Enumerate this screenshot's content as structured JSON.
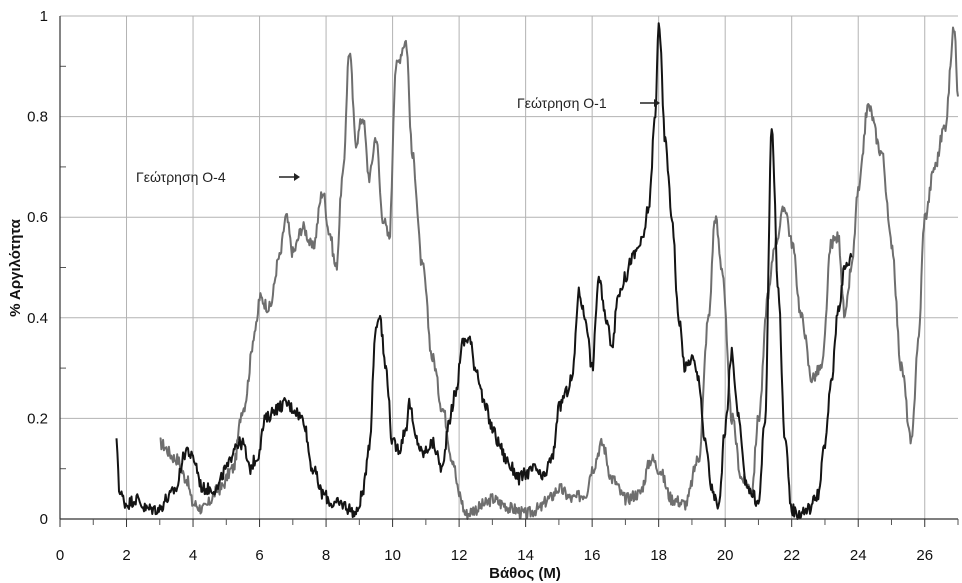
{
  "chart_data": {
    "type": "line",
    "xlabel": "Βάθος (M)",
    "ylabel": "% Αργιλότητα",
    "xlim": [
      0,
      27
    ],
    "ylim": [
      0,
      1
    ],
    "xticks": [
      0,
      2,
      4,
      6,
      8,
      10,
      12,
      14,
      16,
      18,
      20,
      22,
      24,
      26
    ],
    "yticks": [
      0,
      0.2,
      0.4,
      0.6,
      0.8,
      1
    ],
    "ytick_labels": [
      "0",
      "0.2",
      "0.4",
      "0.6",
      "0.8",
      "1"
    ],
    "grid": true,
    "annotations": [
      {
        "text": "Γεώτρηση O-4",
        "series": 0,
        "arrow": "right"
      },
      {
        "text": "Γεώτρηση O-1",
        "series": 1,
        "arrow": "right"
      }
    ],
    "series": [
      {
        "name": "Γεώτρηση O-4",
        "color": "#6e6e6e",
        "x": [
          3.0,
          3.5,
          3.8,
          4.0,
          4.3,
          4.8,
          5.2,
          5.5,
          5.9,
          6.0,
          6.3,
          6.6,
          6.8,
          7.0,
          7.3,
          7.6,
          7.9,
          8.1,
          8.3,
          8.5,
          8.7,
          8.9,
          9.1,
          9.3,
          9.5,
          9.7,
          9.9,
          10.1,
          10.4,
          10.6,
          10.9,
          11.2,
          11.5,
          11.8,
          12.0,
          12.2,
          12.5,
          12.8,
          13.0,
          13.3,
          13.6,
          14.0,
          14.4,
          14.7,
          15.0,
          15.4,
          15.8,
          16.0,
          16.3,
          16.6,
          17.0,
          17.4,
          17.8,
          18.0,
          18.4,
          18.8,
          19.2,
          19.5,
          19.7,
          19.9,
          20.2,
          20.5,
          20.8,
          21.0,
          21.3,
          21.5,
          21.8,
          22.0,
          22.3,
          22.6,
          22.9,
          23.2,
          23.4,
          23.6,
          23.8,
          24.0,
          24.3,
          24.7,
          25.0,
          25.3,
          25.6,
          25.8,
          26.0,
          26.3,
          26.6,
          26.9,
          27.0
        ],
        "y": [
          0.15,
          0.12,
          0.08,
          0.03,
          0.02,
          0.06,
          0.1,
          0.22,
          0.38,
          0.44,
          0.42,
          0.52,
          0.6,
          0.53,
          0.58,
          0.54,
          0.65,
          0.57,
          0.5,
          0.68,
          0.93,
          0.75,
          0.8,
          0.68,
          0.76,
          0.6,
          0.56,
          0.9,
          0.95,
          0.72,
          0.5,
          0.32,
          0.22,
          0.12,
          0.05,
          0.01,
          0.02,
          0.03,
          0.04,
          0.03,
          0.02,
          0.01,
          0.02,
          0.04,
          0.06,
          0.04,
          0.05,
          0.1,
          0.15,
          0.08,
          0.04,
          0.05,
          0.12,
          0.1,
          0.04,
          0.03,
          0.12,
          0.4,
          0.6,
          0.5,
          0.2,
          0.08,
          0.06,
          0.2,
          0.45,
          0.55,
          0.62,
          0.55,
          0.4,
          0.28,
          0.3,
          0.55,
          0.56,
          0.4,
          0.5,
          0.65,
          0.82,
          0.73,
          0.55,
          0.3,
          0.15,
          0.35,
          0.6,
          0.7,
          0.78,
          0.98,
          0.84
        ]
      },
      {
        "name": "Γεώτρηση O-1",
        "color": "#141414",
        "x": [
          1.7,
          1.8,
          2.0,
          2.3,
          2.6,
          2.8,
          3.0,
          3.2,
          3.5,
          3.7,
          3.8,
          4.0,
          4.3,
          4.7,
          5.0,
          5.3,
          5.5,
          5.7,
          5.9,
          6.2,
          6.5,
          6.8,
          7.0,
          7.3,
          7.6,
          7.9,
          8.2,
          8.5,
          8.7,
          8.9,
          9.1,
          9.3,
          9.5,
          9.6,
          9.8,
          10.0,
          10.2,
          10.4,
          10.5,
          10.7,
          10.9,
          11.2,
          11.5,
          11.7,
          11.9,
          12.1,
          12.3,
          12.5,
          12.8,
          13.0,
          13.2,
          13.4,
          13.6,
          13.8,
          14.0,
          14.3,
          14.5,
          14.8,
          15.0,
          15.2,
          15.4,
          15.6,
          15.8,
          16.0,
          16.2,
          16.4,
          16.6,
          16.8,
          17.0,
          17.2,
          17.5,
          17.7,
          17.9,
          18.0,
          18.2,
          18.4,
          18.6,
          18.8,
          19.0,
          19.2,
          19.4,
          19.6,
          19.8,
          20.0,
          20.2,
          20.4,
          20.6,
          20.8,
          21.0,
          21.2,
          21.4,
          21.6,
          21.8,
          22.0,
          22.2,
          22.5,
          22.8,
          23.0,
          23.2,
          23.4,
          23.6,
          23.8
        ],
        "y": [
          0.15,
          0.05,
          0.03,
          0.04,
          0.02,
          0.02,
          0.02,
          0.04,
          0.06,
          0.12,
          0.14,
          0.12,
          0.06,
          0.06,
          0.1,
          0.15,
          0.15,
          0.1,
          0.12,
          0.2,
          0.22,
          0.23,
          0.22,
          0.2,
          0.1,
          0.05,
          0.03,
          0.03,
          0.02,
          0.01,
          0.05,
          0.15,
          0.38,
          0.41,
          0.3,
          0.15,
          0.14,
          0.18,
          0.23,
          0.16,
          0.13,
          0.15,
          0.1,
          0.2,
          0.25,
          0.35,
          0.36,
          0.3,
          0.22,
          0.18,
          0.15,
          0.12,
          0.1,
          0.08,
          0.09,
          0.1,
          0.08,
          0.12,
          0.22,
          0.25,
          0.28,
          0.45,
          0.4,
          0.3,
          0.48,
          0.4,
          0.35,
          0.45,
          0.48,
          0.52,
          0.55,
          0.62,
          0.8,
          0.99,
          0.75,
          0.6,
          0.4,
          0.3,
          0.32,
          0.28,
          0.15,
          0.06,
          0.02,
          0.18,
          0.33,
          0.2,
          0.08,
          0.05,
          0.03,
          0.2,
          0.78,
          0.45,
          0.15,
          0.02,
          0.01,
          0.02,
          0.05,
          0.15,
          0.28,
          0.42,
          0.5,
          0.52
        ]
      }
    ]
  }
}
